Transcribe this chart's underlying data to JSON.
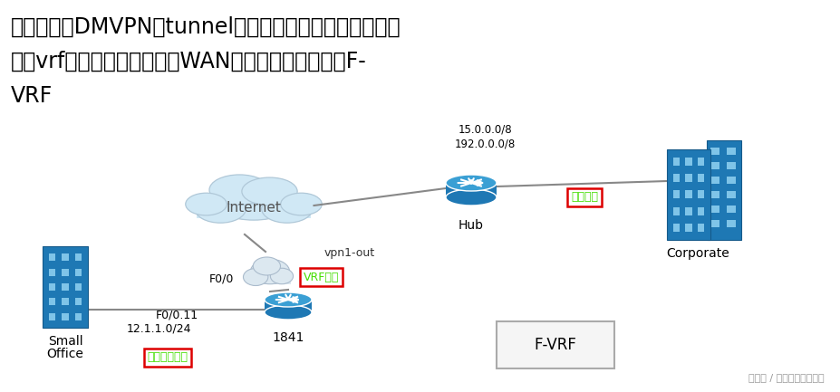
{
  "title_text_line1": "那么当一个DMVPN的tunnel接口被关联到连接运营商的接",
  "title_text_line2": "口的vrf时，即用于连接其他WAN上的站点，就用到了F-",
  "title_text_line3": "VRF",
  "background_color": "#ffffff",
  "internet_label": "Internet",
  "hub_label": "Hub",
  "corporate_label": "Corporate",
  "small_office_label1": "Small",
  "small_office_label2": "Office",
  "router_1841_label": "1841",
  "hub_addr": "15.0.0.0/8\n192.0.0.0/8",
  "vpn1_out_label": "vpn1-out",
  "f0_0_label": "F0/0",
  "f0_11_label": "F0/0.11",
  "ip_subnet_label": "12.1.1.0/24",
  "zongbu_label": "总部路由",
  "vrf_label": "VRF接口",
  "branch_label": "分支机构路由",
  "fvrf_label": "F-VRF",
  "watermark": "头条号 / 专注分享网络技术",
  "cloud_color": "#d0e8f5",
  "cloud_border": "#b0c8d8",
  "tunnel_cloud_color": "#dce8f0",
  "tunnel_cloud_border": "#aabbcc",
  "router_color": "#1e78b4",
  "router_top_color": "#3a9fd4",
  "building_color": "#1e78b4",
  "building_window": "#7fc4e8",
  "line_color": "#888888",
  "label_border_red": "#dd0000",
  "label_text_green": "#44dd00",
  "fvrf_box_color": "#f5f5f5",
  "fvrf_border": "#aaaaaa",
  "text_color": "#000000",
  "watermark_color": "#999999"
}
